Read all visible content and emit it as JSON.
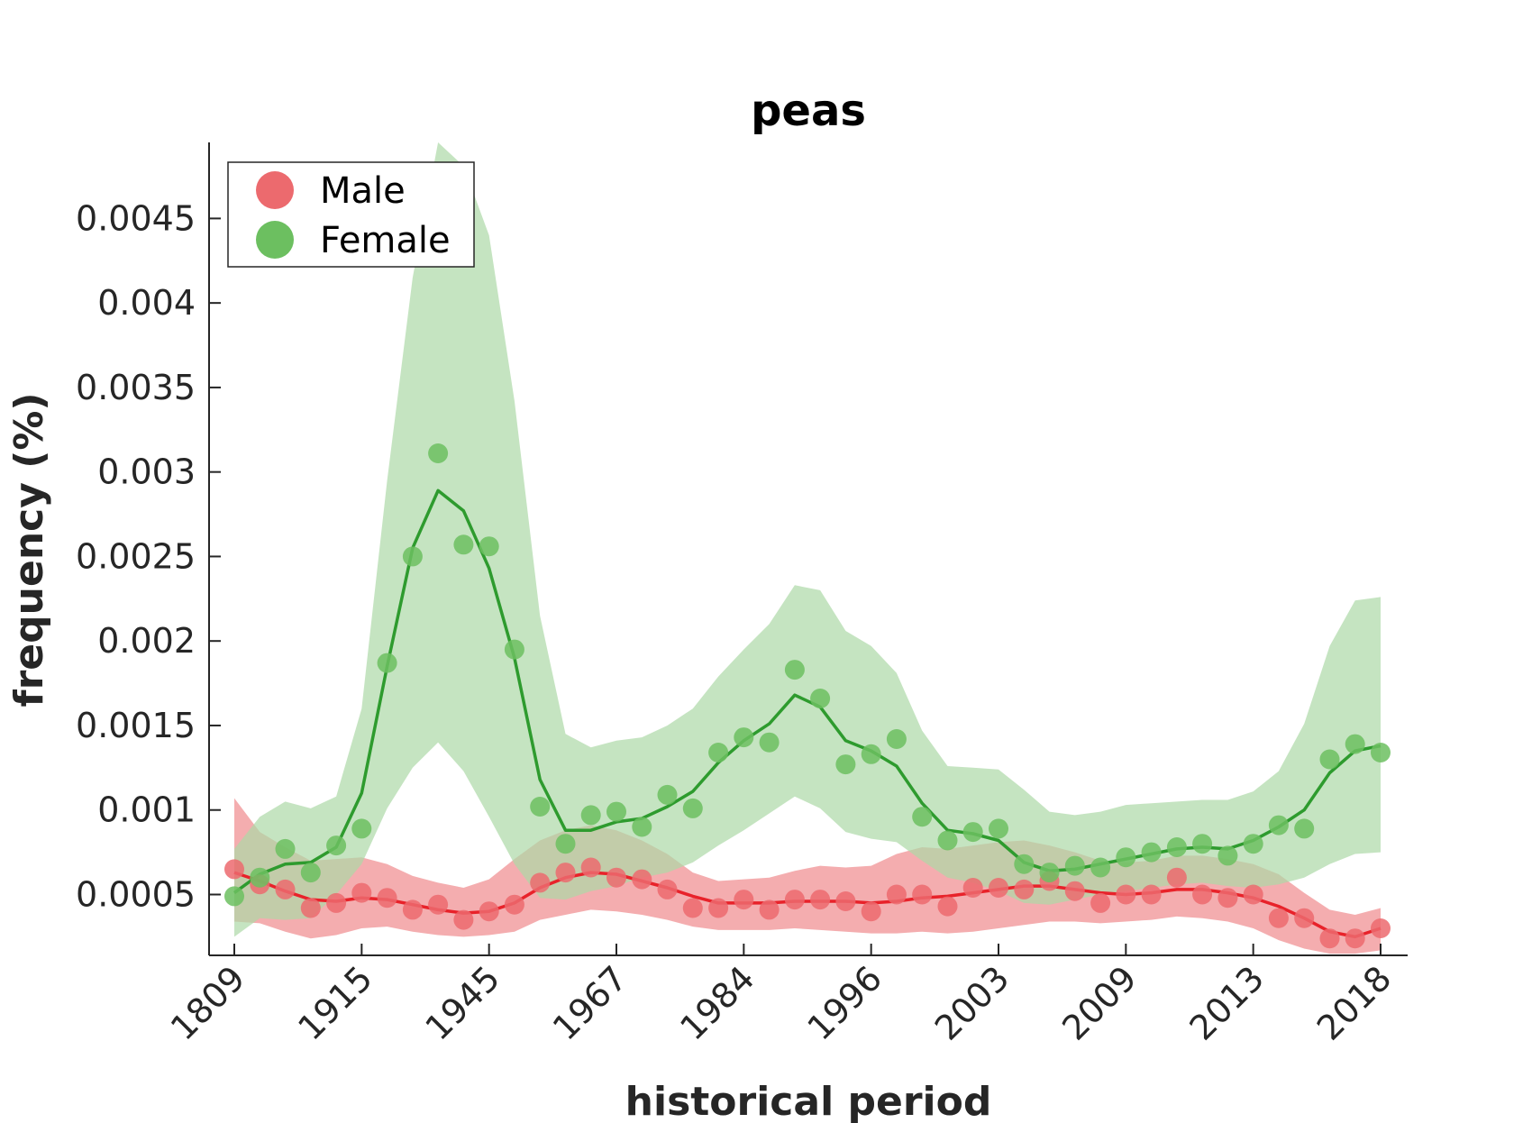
{
  "chart_data": {
    "type": "line",
    "title": "peas",
    "xlabel": "historical period",
    "ylabel": "frequency (%)",
    "ylim": [
      0.00014,
      0.00495
    ],
    "y_ticks": [
      0.0005,
      0.001,
      0.0015,
      0.002,
      0.0025,
      0.003,
      0.0035,
      0.004,
      0.0045
    ],
    "y_tick_labels": [
      "0.0005",
      "0.001",
      "0.0015",
      "0.002",
      "0.0025",
      "0.003",
      "0.0035",
      "0.004",
      "0.0045"
    ],
    "x_count": 46,
    "x_ticks": [
      0,
      5,
      10,
      15,
      20,
      25,
      30,
      35,
      40,
      45
    ],
    "x_tick_labels": [
      "1809",
      "1915",
      "1945",
      "1967",
      "1984",
      "1996",
      "2003",
      "2009",
      "2013",
      "2018"
    ],
    "legend": {
      "position": "top-left",
      "entries": [
        "Male",
        "Female"
      ]
    },
    "grid": false,
    "series": [
      {
        "name": "Male",
        "color": "#e8222a",
        "point_color": "#ec6a6e",
        "band_color": "#ef8a8d",
        "points": [
          0.00065,
          0.00056,
          0.00053,
          0.00042,
          0.00045,
          0.00051,
          0.00048,
          0.00041,
          0.00044,
          0.00035,
          0.0004,
          0.00044,
          0.00057,
          0.00063,
          0.00066,
          0.0006,
          0.00059,
          0.00053,
          0.00042,
          0.00042,
          0.00047,
          0.00041,
          0.00047,
          0.00047,
          0.00046,
          0.0004,
          0.0005,
          0.0005,
          0.00043,
          0.00054,
          0.00054,
          0.00053,
          0.00058,
          0.00052,
          0.00045,
          0.0005,
          0.0005,
          0.0006,
          0.0005,
          0.00048,
          0.0005,
          0.00036,
          0.00036,
          0.00024,
          0.00024,
          0.0003
        ],
        "line": [
          0.00063,
          0.00058,
          0.00052,
          0.00047,
          0.00046,
          0.00048,
          0.00047,
          0.00044,
          0.00041,
          0.00039,
          0.0004,
          0.00045,
          0.00054,
          0.0006,
          0.00063,
          0.00062,
          0.00058,
          0.00054,
          0.00049,
          0.00045,
          0.00045,
          0.00045,
          0.00046,
          0.00046,
          0.00046,
          0.00045,
          0.00046,
          0.00048,
          0.00049,
          0.00051,
          0.00053,
          0.00055,
          0.00055,
          0.00053,
          0.00051,
          0.0005,
          0.00051,
          0.00053,
          0.00053,
          0.00051,
          0.00048,
          0.00043,
          0.00036,
          0.00028,
          0.00025,
          0.0003
        ],
        "band_upper": [
          0.00107,
          0.00087,
          0.00078,
          0.0007,
          0.00071,
          0.00072,
          0.00068,
          0.00061,
          0.00057,
          0.00054,
          0.00059,
          0.00071,
          0.00082,
          0.00088,
          0.00091,
          0.00088,
          0.00082,
          0.00074,
          0.00063,
          0.00058,
          0.00059,
          0.0006,
          0.00064,
          0.00067,
          0.00066,
          0.00067,
          0.00074,
          0.00078,
          0.00077,
          0.00079,
          0.00081,
          0.00082,
          0.00079,
          0.00075,
          0.0007,
          0.00069,
          0.0007,
          0.00073,
          0.00073,
          0.00071,
          0.00068,
          0.00062,
          0.00051,
          0.00041,
          0.00038,
          0.00042
        ],
        "band_lower": [
          0.00034,
          0.00033,
          0.00028,
          0.00024,
          0.00026,
          0.0003,
          0.00031,
          0.00028,
          0.00026,
          0.00025,
          0.00026,
          0.00028,
          0.00035,
          0.00038,
          0.00041,
          0.0004,
          0.00038,
          0.00035,
          0.00031,
          0.00029,
          0.00029,
          0.00029,
          0.0003,
          0.00029,
          0.00028,
          0.00027,
          0.00027,
          0.00028,
          0.00027,
          0.00028,
          0.0003,
          0.00032,
          0.00034,
          0.00034,
          0.00033,
          0.00034,
          0.00035,
          0.00037,
          0.00036,
          0.00034,
          0.0003,
          0.00023,
          0.00018,
          0.00015,
          0.00015,
          0.00017
        ]
      },
      {
        "name": "Female",
        "color": "#2e9b2e",
        "point_color": "#6cbf60",
        "band_color": "#acd9a6",
        "points": [
          0.00049,
          0.0006,
          0.00077,
          0.00063,
          0.00079,
          0.00089,
          0.00187,
          0.0025,
          0.00311,
          0.00257,
          0.00256,
          0.00195,
          0.00102,
          0.0008,
          0.00097,
          0.00099,
          0.0009,
          0.00109,
          0.00101,
          0.00134,
          0.00143,
          0.0014,
          0.00183,
          0.00166,
          0.00127,
          0.00133,
          0.00142,
          0.00096,
          0.00082,
          0.00087,
          0.00089,
          0.00068,
          0.00063,
          0.00067,
          0.00066,
          0.00072,
          0.00075,
          0.00078,
          0.0008,
          0.00073,
          0.0008,
          0.00091,
          0.00089,
          0.0013,
          0.00139,
          0.00134
        ],
        "line": [
          0.00051,
          0.00062,
          0.00068,
          0.00069,
          0.00078,
          0.0011,
          0.00185,
          0.00255,
          0.00289,
          0.00277,
          0.00243,
          0.0019,
          0.00118,
          0.00088,
          0.00088,
          0.00093,
          0.00095,
          0.00102,
          0.00111,
          0.00128,
          0.00141,
          0.00151,
          0.00168,
          0.00161,
          0.00141,
          0.00135,
          0.00126,
          0.00104,
          0.00088,
          0.00086,
          0.00082,
          0.00069,
          0.00064,
          0.00065,
          0.00068,
          0.00071,
          0.00074,
          0.00077,
          0.00078,
          0.00077,
          0.00082,
          0.0009,
          0.001,
          0.00122,
          0.00135,
          0.00138
        ],
        "band_upper": [
          0.00077,
          0.00096,
          0.00105,
          0.00101,
          0.00108,
          0.0016,
          0.00295,
          0.00415,
          0.00495,
          0.00481,
          0.0044,
          0.00342,
          0.00215,
          0.00145,
          0.00137,
          0.00141,
          0.00143,
          0.0015,
          0.0016,
          0.00179,
          0.00195,
          0.0021,
          0.00233,
          0.0023,
          0.00206,
          0.00197,
          0.00181,
          0.00147,
          0.00126,
          0.00125,
          0.00124,
          0.00112,
          0.00099,
          0.00097,
          0.00099,
          0.00103,
          0.00104,
          0.00105,
          0.00106,
          0.00106,
          0.00111,
          0.00123,
          0.00151,
          0.00197,
          0.00224,
          0.00226
        ],
        "band_lower": [
          0.00025,
          0.00036,
          0.00035,
          0.00036,
          0.0005,
          0.00068,
          0.00101,
          0.00125,
          0.0014,
          0.00123,
          0.00096,
          0.00068,
          0.00048,
          0.00047,
          0.00052,
          0.00055,
          0.0006,
          0.00063,
          0.00069,
          0.00079,
          0.00088,
          0.00098,
          0.00108,
          0.00101,
          0.00087,
          0.00083,
          0.00081,
          0.0007,
          0.0006,
          0.00057,
          0.00052,
          0.00045,
          0.00044,
          0.00047,
          0.0005,
          0.00052,
          0.00054,
          0.00056,
          0.00057,
          0.00055,
          0.00054,
          0.00056,
          0.0006,
          0.00068,
          0.00074,
          0.00075
        ]
      }
    ]
  }
}
